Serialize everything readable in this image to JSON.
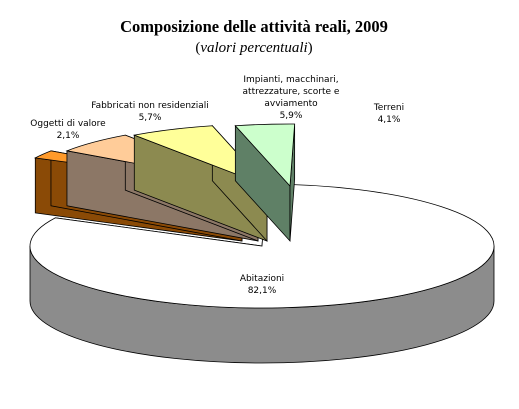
{
  "chart_data": {
    "type": "pie",
    "title": "Composizione delle attività reali, 2009",
    "subtitle": "valori percentuali",
    "three_d": true,
    "exploded": true,
    "slices": [
      {
        "label": "Abitazioni",
        "value": 82.1,
        "value_label": "82,1%",
        "color": "#ffffff",
        "side_color": "#8c8c8c"
      },
      {
        "label": "Oggetti di valore",
        "value": 2.1,
        "value_label": "2,1%",
        "color": "#ff9a2a",
        "side_color": "#8a4a06"
      },
      {
        "label": "Fabbricati non residenziali",
        "value": 5.7,
        "value_label": "5,7%",
        "color": "#ffcc99",
        "side_color": "#8c7766"
      },
      {
        "label": "Impianti, macchinari, attrezzature, scorte e avviamento",
        "label_lines": [
          "Impianti, macchinari,",
          "attrezzature, scorte e",
          "avviamento"
        ],
        "value": 5.9,
        "value_label": "5,9%",
        "color": "#ffff99",
        "side_color": "#8c8a50"
      },
      {
        "label": "Terreni",
        "value": 4.1,
        "value_label": "4,1%",
        "color": "#ccffcc",
        "side_color": "#5f8066"
      }
    ]
  }
}
